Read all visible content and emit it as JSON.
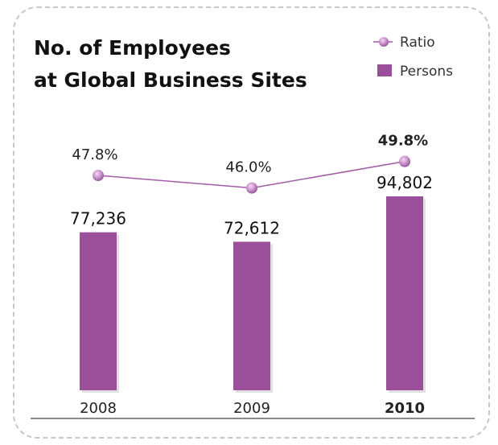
{
  "colors": {
    "bar": "#9b4f9b",
    "line": "#a35aa8",
    "highlight": "#a64ea6",
    "text": "#222222"
  },
  "chart_data": {
    "type": "bar",
    "title": "No. of Employees\nat Global Business Sites",
    "categories": [
      "2008",
      "2009",
      "2010"
    ],
    "highlight_category": "2010",
    "series": [
      {
        "name": "Persons",
        "type": "bar",
        "values": [
          77236,
          72612,
          94802
        ],
        "labels": [
          "77,236",
          "72,612",
          "94,802"
        ]
      },
      {
        "name": "Ratio",
        "type": "line",
        "values": [
          47.8,
          46.0,
          49.8
        ],
        "labels": [
          "47.8%",
          "46.0%",
          "49.8%"
        ]
      }
    ],
    "legend": {
      "position": "top-right",
      "entries": [
        "Ratio",
        "Persons"
      ]
    },
    "grid": false
  }
}
